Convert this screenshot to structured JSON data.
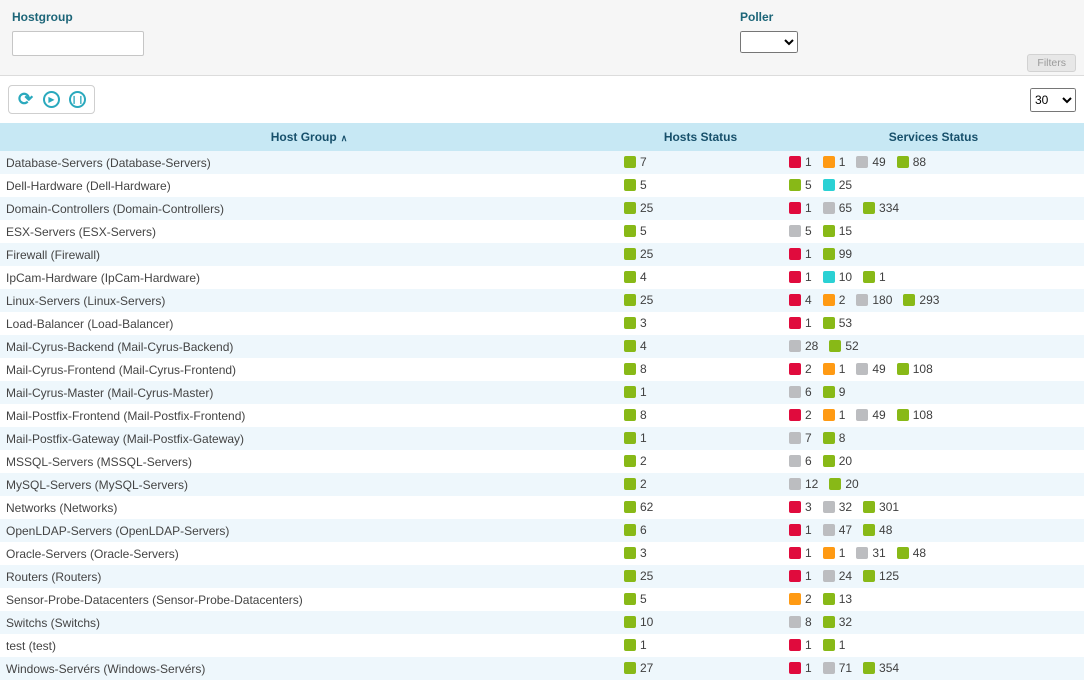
{
  "filters": {
    "hostgroup_label": "Hostgroup",
    "hostgroup_value": "",
    "poller_label": "Poller",
    "poller_value": "",
    "filters_button": "Filters"
  },
  "toolbar": {
    "refresh_icon": "refresh",
    "play_icon": "play",
    "pause_icon": "pause",
    "page_size": "30"
  },
  "status_colors": {
    "ok": "#88b917",
    "warning": "#ff9a13",
    "critical": "#e00b3d",
    "unknown": "#bcbdc0",
    "pending": "#2ad1d4"
  },
  "table": {
    "headers": {
      "host_group": "Host Group",
      "hosts_status": "Hosts Status",
      "services_status": "Services Status"
    },
    "sort_icon": "∧",
    "rows": [
      {
        "name": "Database-Servers (Database-Servers)",
        "hosts": [
          {
            "status": "ok",
            "count": 7
          }
        ],
        "services": [
          {
            "status": "critical",
            "count": 1
          },
          {
            "status": "warning",
            "count": 1
          },
          {
            "status": "unknown",
            "count": 49
          },
          {
            "status": "ok",
            "count": 88
          }
        ]
      },
      {
        "name": "Dell-Hardware (Dell-Hardware)",
        "hosts": [
          {
            "status": "ok",
            "count": 5
          }
        ],
        "services": [
          {
            "status": "ok",
            "count": 5
          },
          {
            "status": "pending",
            "count": 25
          }
        ]
      },
      {
        "name": "Domain-Controllers (Domain-Controllers)",
        "hosts": [
          {
            "status": "ok",
            "count": 25
          }
        ],
        "services": [
          {
            "status": "critical",
            "count": 1
          },
          {
            "status": "unknown",
            "count": 65
          },
          {
            "status": "ok",
            "count": 334
          }
        ]
      },
      {
        "name": "ESX-Servers (ESX-Servers)",
        "hosts": [
          {
            "status": "ok",
            "count": 5
          }
        ],
        "services": [
          {
            "status": "unknown",
            "count": 5
          },
          {
            "status": "ok",
            "count": 15
          }
        ]
      },
      {
        "name": "Firewall (Firewall)",
        "hosts": [
          {
            "status": "ok",
            "count": 25
          }
        ],
        "services": [
          {
            "status": "critical",
            "count": 1
          },
          {
            "status": "ok",
            "count": 99
          }
        ]
      },
      {
        "name": "IpCam-Hardware (IpCam-Hardware)",
        "hosts": [
          {
            "status": "ok",
            "count": 4
          }
        ],
        "services": [
          {
            "status": "critical",
            "count": 1
          },
          {
            "status": "pending",
            "count": 10
          },
          {
            "status": "ok",
            "count": 1
          }
        ]
      },
      {
        "name": "Linux-Servers (Linux-Servers)",
        "hosts": [
          {
            "status": "ok",
            "count": 25
          }
        ],
        "services": [
          {
            "status": "critical",
            "count": 4
          },
          {
            "status": "warning",
            "count": 2
          },
          {
            "status": "unknown",
            "count": 180
          },
          {
            "status": "ok",
            "count": 293
          }
        ]
      },
      {
        "name": "Load-Balancer (Load-Balancer)",
        "hosts": [
          {
            "status": "ok",
            "count": 3
          }
        ],
        "services": [
          {
            "status": "critical",
            "count": 1
          },
          {
            "status": "ok",
            "count": 53
          }
        ]
      },
      {
        "name": "Mail-Cyrus-Backend (Mail-Cyrus-Backend)",
        "hosts": [
          {
            "status": "ok",
            "count": 4
          }
        ],
        "services": [
          {
            "status": "unknown",
            "count": 28
          },
          {
            "status": "ok",
            "count": 52
          }
        ]
      },
      {
        "name": "Mail-Cyrus-Frontend (Mail-Cyrus-Frontend)",
        "hosts": [
          {
            "status": "ok",
            "count": 8
          }
        ],
        "services": [
          {
            "status": "critical",
            "count": 2
          },
          {
            "status": "warning",
            "count": 1
          },
          {
            "status": "unknown",
            "count": 49
          },
          {
            "status": "ok",
            "count": 108
          }
        ]
      },
      {
        "name": "Mail-Cyrus-Master (Mail-Cyrus-Master)",
        "hosts": [
          {
            "status": "ok",
            "count": 1
          }
        ],
        "services": [
          {
            "status": "unknown",
            "count": 6
          },
          {
            "status": "ok",
            "count": 9
          }
        ]
      },
      {
        "name": "Mail-Postfix-Frontend (Mail-Postfix-Frontend)",
        "hosts": [
          {
            "status": "ok",
            "count": 8
          }
        ],
        "services": [
          {
            "status": "critical",
            "count": 2
          },
          {
            "status": "warning",
            "count": 1
          },
          {
            "status": "unknown",
            "count": 49
          },
          {
            "status": "ok",
            "count": 108
          }
        ]
      },
      {
        "name": "Mail-Postfix-Gateway (Mail-Postfix-Gateway)",
        "hosts": [
          {
            "status": "ok",
            "count": 1
          }
        ],
        "services": [
          {
            "status": "unknown",
            "count": 7
          },
          {
            "status": "ok",
            "count": 8
          }
        ]
      },
      {
        "name": "MSSQL-Servers (MSSQL-Servers)",
        "hosts": [
          {
            "status": "ok",
            "count": 2
          }
        ],
        "services": [
          {
            "status": "unknown",
            "count": 6
          },
          {
            "status": "ok",
            "count": 20
          }
        ]
      },
      {
        "name": "MySQL-Servers (MySQL-Servers)",
        "hosts": [
          {
            "status": "ok",
            "count": 2
          }
        ],
        "services": [
          {
            "status": "unknown",
            "count": 12
          },
          {
            "status": "ok",
            "count": 20
          }
        ]
      },
      {
        "name": "Networks (Networks)",
        "hosts": [
          {
            "status": "ok",
            "count": 62
          }
        ],
        "services": [
          {
            "status": "critical",
            "count": 3
          },
          {
            "status": "unknown",
            "count": 32
          },
          {
            "status": "ok",
            "count": 301
          }
        ]
      },
      {
        "name": "OpenLDAP-Servers (OpenLDAP-Servers)",
        "hosts": [
          {
            "status": "ok",
            "count": 6
          }
        ],
        "services": [
          {
            "status": "critical",
            "count": 1
          },
          {
            "status": "unknown",
            "count": 47
          },
          {
            "status": "ok",
            "count": 48
          }
        ]
      },
      {
        "name": "Oracle-Servers (Oracle-Servers)",
        "hosts": [
          {
            "status": "ok",
            "count": 3
          }
        ],
        "services": [
          {
            "status": "critical",
            "count": 1
          },
          {
            "status": "warning",
            "count": 1
          },
          {
            "status": "unknown",
            "count": 31
          },
          {
            "status": "ok",
            "count": 48
          }
        ]
      },
      {
        "name": "Routers (Routers)",
        "hosts": [
          {
            "status": "ok",
            "count": 25
          }
        ],
        "services": [
          {
            "status": "critical",
            "count": 1
          },
          {
            "status": "unknown",
            "count": 24
          },
          {
            "status": "ok",
            "count": 125
          }
        ]
      },
      {
        "name": "Sensor-Probe-Datacenters (Sensor-Probe-Datacenters)",
        "hosts": [
          {
            "status": "ok",
            "count": 5
          }
        ],
        "services": [
          {
            "status": "warning",
            "count": 2
          },
          {
            "status": "ok",
            "count": 13
          }
        ]
      },
      {
        "name": "Switchs (Switchs)",
        "hosts": [
          {
            "status": "ok",
            "count": 10
          }
        ],
        "services": [
          {
            "status": "unknown",
            "count": 8
          },
          {
            "status": "ok",
            "count": 32
          }
        ]
      },
      {
        "name": "test (test)",
        "hosts": [
          {
            "status": "ok",
            "count": 1
          }
        ],
        "services": [
          {
            "status": "critical",
            "count": 1
          },
          {
            "status": "ok",
            "count": 1
          }
        ]
      },
      {
        "name": "Windows-Servérs (Windows-Servérs)",
        "hosts": [
          {
            "status": "ok",
            "count": 27
          }
        ],
        "services": [
          {
            "status": "critical",
            "count": 1
          },
          {
            "status": "unknown",
            "count": 71
          },
          {
            "status": "ok",
            "count": 354
          }
        ]
      }
    ]
  }
}
